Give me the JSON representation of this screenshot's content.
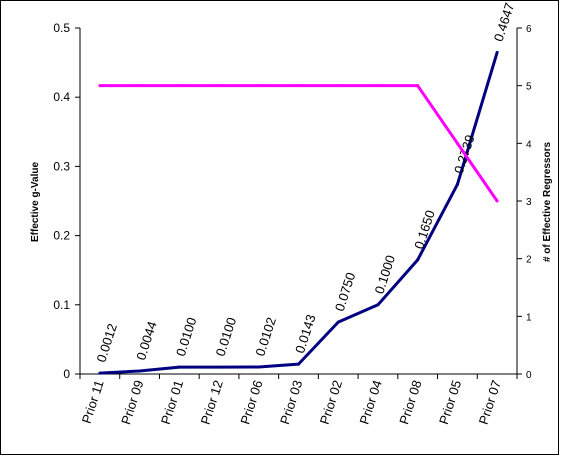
{
  "chart_data": {
    "type": "line",
    "title": "",
    "categories": [
      "Prior 11",
      "Prior 09",
      "Prior 01",
      "Prior 12",
      "Prior 06",
      "Prior 03",
      "Prior 02",
      "Prior 04",
      "Prior 08",
      "Prior 05",
      "Prior 07"
    ],
    "series": [
      {
        "name": "",
        "axis": "left",
        "color": "#000080",
        "values": [
          0.0012,
          0.0044,
          0.01,
          0.01,
          0.0102,
          0.0143,
          0.075,
          0.1,
          0.165,
          0.2739,
          0.4647
        ],
        "data_labels": [
          "0.0012",
          "0.0044",
          "0.0100",
          "0.0100",
          "0.0102",
          "0.0143",
          "0.0750",
          "0.1000",
          "0.1650",
          "0.2739",
          "0.4647"
        ]
      },
      {
        "name": "",
        "axis": "right",
        "color": "#FF00FF",
        "values": [
          5,
          5,
          5,
          5,
          5,
          5,
          5,
          5,
          5,
          4,
          3
        ]
      }
    ],
    "ylabel": "Effective g-Value",
    "y2label": "# of Effective Regressors",
    "ylim": [
      0,
      0.5
    ],
    "yticks": [
      "0",
      "0.1",
      "0.2",
      "0.3",
      "0.4",
      "0.5"
    ],
    "y2lim": [
      0,
      6
    ],
    "y2ticks": [
      "0",
      "1",
      "2",
      "3",
      "4",
      "5",
      "6"
    ],
    "grid": false,
    "legend": "none"
  }
}
